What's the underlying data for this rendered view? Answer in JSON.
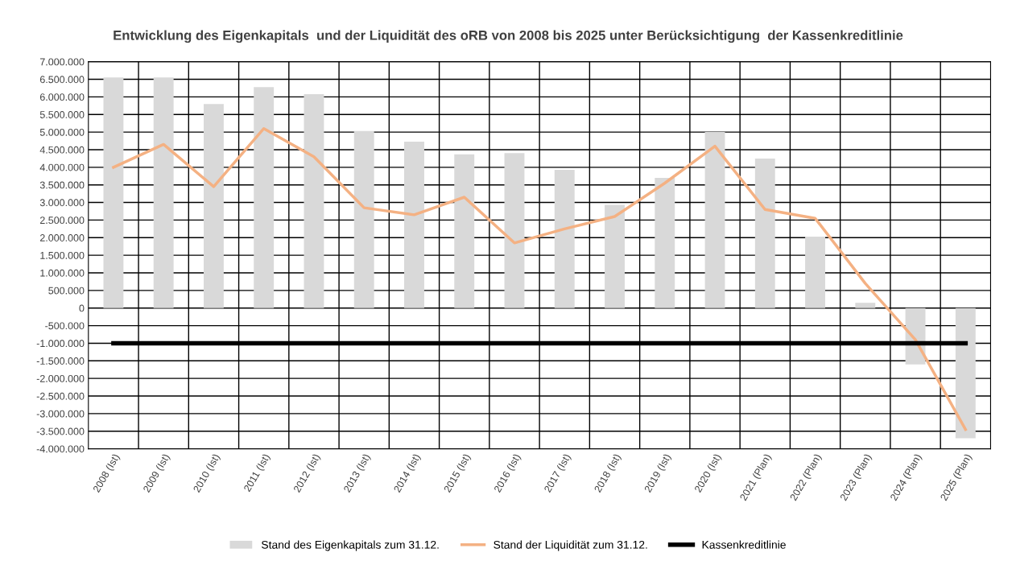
{
  "chart_data": {
    "type": "bar",
    "title": "Entwicklung des Eigenkapitals  und der Liquidität des oRB von 2008 bis 2025 unter Berücksichtigung  der Kassenkreditlinie",
    "categories": [
      "2008 (Ist)",
      "2009 (Ist)",
      "2010 (Ist)",
      "2011 (Ist)",
      "2012 (Ist)",
      "2013 (Ist)",
      "2014 (Ist)",
      "2015 (Ist)",
      "2016 (Ist)",
      "2017 (Ist)",
      "2018 (Ist)",
      "2019 (Ist)",
      "2020 (Ist)",
      "2021 (Plan)",
      "2022 (Plan)",
      "2023 (Plan)",
      "2024 (Plan)",
      "2025 (Plan)"
    ],
    "series": [
      {
        "name": "Stand des Eigenkapitals zum 31.12.",
        "color": "#d9d9d9",
        "values": [
          6550000,
          6550000,
          5800000,
          6280000,
          6080000,
          5030000,
          4730000,
          4370000,
          4400000,
          3930000,
          2930000,
          3700000,
          5000000,
          4250000,
          2030000,
          150000,
          -1600000,
          -3700000
        ]
      },
      {
        "name": "Stand der Liquidität zum 31.12.",
        "type": "line",
        "color": "#f4b183",
        "values": [
          4000000,
          4650000,
          3450000,
          5100000,
          4300000,
          2850000,
          2650000,
          3150000,
          1850000,
          2250000,
          2600000,
          3550000,
          4600000,
          2800000,
          2550000,
          700000,
          -900000,
          -3450000
        ]
      },
      {
        "name": "Kassenkreditlinie",
        "type": "line",
        "color": "#000000",
        "values": [
          -1000000,
          -1000000,
          -1000000,
          -1000000,
          -1000000,
          -1000000,
          -1000000,
          -1000000,
          -1000000,
          -1000000,
          -1000000,
          -1000000,
          -1000000,
          -1000000,
          -1000000,
          -1000000,
          -1000000,
          -1000000
        ]
      }
    ],
    "ylim": [
      -4000000,
      7000000
    ],
    "yticks": [
      {
        "value": -4000000,
        "label": "-4.000.000"
      },
      {
        "value": -3500000,
        "label": "-3.500.000"
      },
      {
        "value": -3000000,
        "label": "-3.000.000"
      },
      {
        "value": -2500000,
        "label": "-2.500.000"
      },
      {
        "value": -2000000,
        "label": "-2.000.000"
      },
      {
        "value": -1500000,
        "label": "-1.500.000"
      },
      {
        "value": -1000000,
        "label": "-1.000.000"
      },
      {
        "value": -500000,
        "label": "-500.000"
      },
      0,
      {
        "value": 500000,
        "label": "500.000"
      },
      {
        "value": 1000000,
        "label": "1.000.000"
      },
      {
        "value": 1500000,
        "label": "1.500.000"
      },
      {
        "value": 2000000,
        "label": "2.000.000"
      },
      {
        "value": 2500000,
        "label": "2.500.000"
      },
      {
        "value": 3000000,
        "label": "3.000.000"
      },
      {
        "value": 3500000,
        "label": "3.500.000"
      },
      {
        "value": 4000000,
        "label": "4.000.000"
      },
      {
        "value": 4500000,
        "label": "4.500.000"
      },
      {
        "value": 5000000,
        "label": "5.000.000"
      },
      {
        "value": 5500000,
        "label": "5.500.000"
      },
      {
        "value": 6000000,
        "label": "6.000.000"
      },
      {
        "value": 6500000,
        "label": "6.500.000"
      },
      {
        "value": 7000000,
        "label": "7.000.000"
      }
    ],
    "grid": true,
    "legend": "bottom"
  }
}
